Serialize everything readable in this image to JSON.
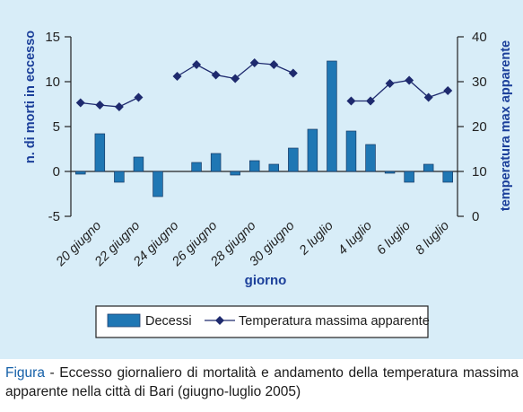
{
  "chart_data": {
    "type": "bar+line",
    "xlabel": "giorno",
    "ylabel_left": "n. di morti in eccesso",
    "ylabel_right": "temperatura max apparente",
    "ylim_left": [
      -5,
      15
    ],
    "yticks_left": [
      "-5",
      "0",
      "5",
      "10",
      "15"
    ],
    "ylim_right": [
      0,
      40
    ],
    "yticks_right": [
      "0",
      "10",
      "20",
      "30",
      "40"
    ],
    "xtick_labels": [
      "20 giugno",
      "22 giugno",
      "24 giugno",
      "26 giugno",
      "28 giugno",
      "30 giugno",
      "2 luglio",
      "4 luglio",
      "6 luglio",
      "8 luglio"
    ],
    "bar_series": {
      "name": "Decessi",
      "color": "#1f77b4",
      "values": [
        -0.3,
        4.2,
        -1.2,
        1.6,
        -2.8,
        null,
        1.0,
        2.0,
        -0.4,
        1.2,
        0.8,
        2.6,
        4.7,
        12.3,
        4.5,
        3.0,
        -0.2,
        -1.2,
        0.8,
        -1.2
      ]
    },
    "line_series": {
      "name": "Temperatura massima apparente",
      "color": "#1e2a6e",
      "marker": "diamond",
      "values": [
        25.3,
        24.8,
        24.4,
        26.5,
        null,
        31.2,
        33.8,
        31.5,
        30.7,
        34.2,
        33.8,
        31.9,
        null,
        null,
        25.7,
        25.7,
        29.6,
        30.3,
        26.5,
        28.0
      ]
    },
    "legend_position": "bottom"
  },
  "caption": {
    "label": "Figura",
    "text": " - Eccesso giornaliero di mortalità e andamento della temperatura massima apparente nella città di Bari (giugno-luglio 2005)"
  }
}
